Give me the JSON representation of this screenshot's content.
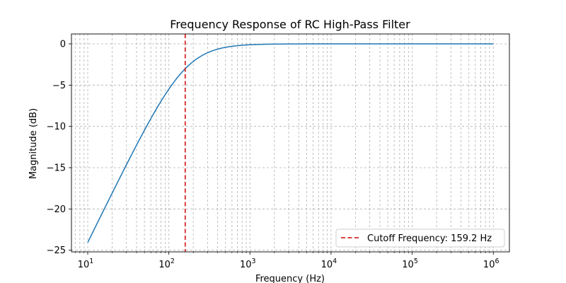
{
  "chart_data": {
    "type": "line",
    "title": "Frequency Response of RC High-Pass Filter",
    "xlabel": "Frequency (Hz)",
    "ylabel": "Magnitude (dB)",
    "xscale": "log",
    "xlim": [
      6.3,
      1580000
    ],
    "ylim": [
      -25.2,
      1.2
    ],
    "x_ticks": [
      10,
      100,
      1000,
      10000,
      100000,
      1000000
    ],
    "x_tick_labels": [
      {
        "base": "10",
        "exp": "1"
      },
      {
        "base": "10",
        "exp": "2"
      },
      {
        "base": "10",
        "exp": "3"
      },
      {
        "base": "10",
        "exp": "4"
      },
      {
        "base": "10",
        "exp": "5"
      },
      {
        "base": "10",
        "exp": "6"
      }
    ],
    "y_ticks": [
      0,
      -5,
      -10,
      -15,
      -20,
      -25
    ],
    "y_tick_labels": [
      "0",
      "−5",
      "−10",
      "−15",
      "−20",
      "−25"
    ],
    "grid": true,
    "legend_position": "bottom-right",
    "cutoff_hz": 159.2,
    "series": [
      {
        "color": "#1f77b4",
        "x": [
          10,
          15,
          20,
          30,
          50,
          70,
          100,
          130,
          159.2,
          200,
          300,
          500,
          700,
          1000,
          2000,
          3000,
          5000,
          10000,
          100000,
          1000000
        ],
        "y": [
          -24.06,
          -20.57,
          -18.09,
          -14.67,
          -10.41,
          -7.87,
          -5.44,
          -4.03,
          -3.01,
          -2.12,
          -1.06,
          -0.42,
          -0.22,
          -0.11,
          -0.03,
          -0.01,
          0.0,
          0.0,
          0.0,
          0.0
        ]
      },
      {
        "name": "Cutoff Frequency: 159.2 Hz",
        "color": "#d62728",
        "style": "dashed",
        "x": [
          159.2,
          159.2
        ],
        "y": [
          -25.2,
          1.2
        ]
      }
    ]
  }
}
